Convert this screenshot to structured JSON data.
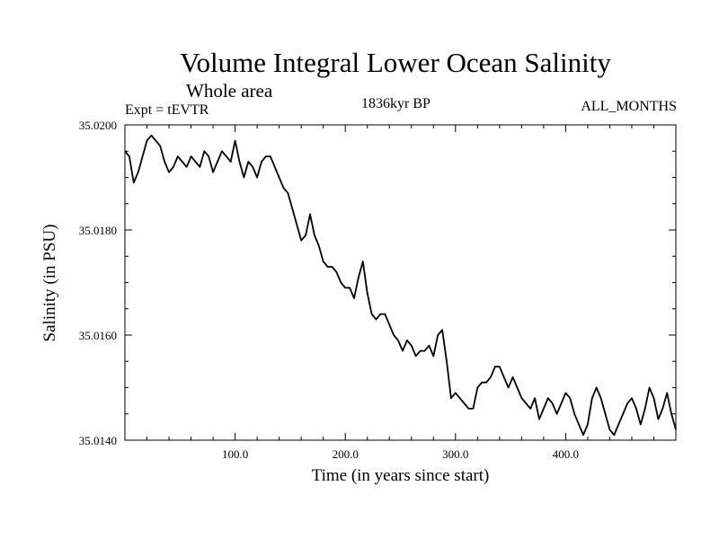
{
  "chart_data": {
    "type": "line",
    "title": "Volume Integral Lower Ocean Salinity",
    "subtitle": "Whole area",
    "expt_label": "Expt = tEVTR",
    "epoch_label": "1836kyr BP",
    "months_label": "ALL_MONTHS",
    "xlabel": "Time (in years since start)",
    "ylabel": "Salinity (in PSU)",
    "xlim": [
      0,
      500
    ],
    "ylim": [
      35.014,
      35.02
    ],
    "x_ticks": [
      100,
      200,
      300,
      400
    ],
    "x_tick_labels": [
      "100.0",
      "200.0",
      "300.0",
      "400.0"
    ],
    "y_ticks": [
      35.014,
      35.016,
      35.018,
      35.02
    ],
    "y_tick_labels": [
      "35.0140",
      "35.0160",
      "35.0180",
      "35.0200"
    ],
    "series": [
      {
        "name": "Salinity",
        "x": [
          0,
          4,
          8,
          12,
          16,
          20,
          24,
          28,
          32,
          36,
          40,
          44,
          48,
          52,
          56,
          60,
          64,
          68,
          72,
          76,
          80,
          84,
          88,
          92,
          96,
          100,
          104,
          108,
          112,
          116,
          120,
          124,
          128,
          132,
          136,
          140,
          144,
          148,
          152,
          156,
          160,
          164,
          168,
          172,
          176,
          180,
          184,
          188,
          192,
          196,
          200,
          204,
          208,
          212,
          216,
          220,
          224,
          228,
          232,
          236,
          240,
          244,
          248,
          252,
          256,
          260,
          264,
          268,
          272,
          276,
          280,
          284,
          288,
          292,
          296,
          300,
          304,
          308,
          312,
          316,
          320,
          324,
          328,
          332,
          336,
          340,
          344,
          348,
          352,
          356,
          360,
          364,
          368,
          372,
          376,
          380,
          384,
          388,
          392,
          396,
          400,
          404,
          408,
          412,
          416,
          420,
          424,
          428,
          432,
          436,
          440,
          444,
          448,
          452,
          456,
          460,
          464,
          468,
          472,
          476,
          480,
          484,
          488,
          492,
          496,
          500
        ],
        "values": [
          35.0195,
          35.0194,
          35.0189,
          35.0191,
          35.0194,
          35.0197,
          35.0198,
          35.0197,
          35.0196,
          35.0193,
          35.0191,
          35.0192,
          35.0194,
          35.0193,
          35.0192,
          35.0194,
          35.0193,
          35.0192,
          35.0195,
          35.0194,
          35.0191,
          35.0193,
          35.0195,
          35.0194,
          35.0193,
          35.0197,
          35.0193,
          35.019,
          35.0193,
          35.0192,
          35.019,
          35.0193,
          35.0194,
          35.0194,
          35.0192,
          35.019,
          35.0188,
          35.0187,
          35.0184,
          35.0181,
          35.0178,
          35.0179,
          35.0183,
          35.0179,
          35.0177,
          35.0174,
          35.0173,
          35.0173,
          35.0172,
          35.017,
          35.0169,
          35.0169,
          35.0167,
          35.0171,
          35.0174,
          35.0168,
          35.0164,
          35.0163,
          35.0164,
          35.0164,
          35.0162,
          35.016,
          35.0159,
          35.0157,
          35.0159,
          35.0158,
          35.0156,
          35.0157,
          35.0157,
          35.0158,
          35.0156,
          35.016,
          35.0161,
          35.0155,
          35.0148,
          35.0149,
          35.0148,
          35.0147,
          35.0146,
          35.0146,
          35.015,
          35.0151,
          35.0151,
          35.0152,
          35.0154,
          35.0154,
          35.0152,
          35.015,
          35.0152,
          35.015,
          35.0148,
          35.0147,
          35.0146,
          35.0148,
          35.0144,
          35.0146,
          35.0148,
          35.0147,
          35.0145,
          35.0147,
          35.0149,
          35.0148,
          35.0145,
          35.0143,
          35.0141,
          35.0143,
          35.0148,
          35.015,
          35.0148,
          35.0145,
          35.0142,
          35.0141,
          35.0143,
          35.0145,
          35.0147,
          35.0148,
          35.0146,
          35.0143,
          35.0146,
          35.015,
          35.0148,
          35.0144,
          35.0146,
          35.0149,
          35.0145,
          35.0142
        ]
      }
    ]
  }
}
